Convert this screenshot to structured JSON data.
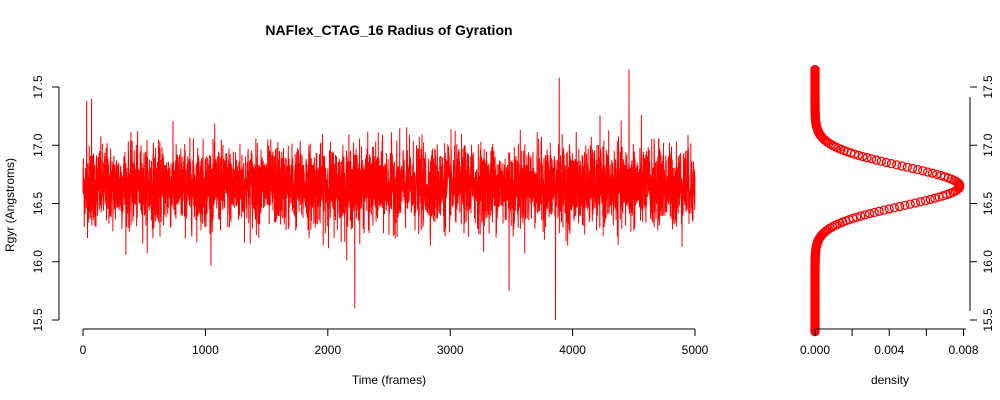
{
  "chart_data": [
    {
      "type": "line",
      "title": "NAFlex_CTAG_16 Radius of Gyration",
      "xlabel": "Time (frames)",
      "ylabel": "Rgyr (Angstroms)",
      "xlim": [
        0,
        5000
      ],
      "ylim": [
        15.5,
        17.6
      ],
      "xticks": [
        0,
        1000,
        2000,
        3000,
        4000,
        5000
      ],
      "yticks": [
        15.5,
        16.0,
        16.5,
        17.0,
        17.5
      ],
      "grid": false,
      "legend": "none",
      "series": [
        {
          "color": "#ff0000",
          "n_frames": 5000,
          "mean": 16.65,
          "sd": 0.17,
          "extremes": [
            {
              "x": 30,
              "y": 17.38
            },
            {
              "x": 70,
              "y": 17.4
            },
            {
              "x": 2220,
              "y": 15.6
            },
            {
              "x": 3480,
              "y": 15.75
            },
            {
              "x": 3860,
              "y": 15.5
            },
            {
              "x": 3890,
              "y": 17.58
            },
            {
              "x": 4460,
              "y": 17.65
            }
          ]
        }
      ]
    },
    {
      "type": "scatter",
      "xlabel": "density",
      "ylabel": "",
      "xlim": [
        0,
        0.0082
      ],
      "ylim": [
        15.4,
        17.65
      ],
      "xticks": [
        "0.000",
        "0.004",
        "0.008"
      ],
      "minor_xticks": [
        0.002,
        0.006
      ],
      "yticks": [
        15.5,
        16.0,
        16.5,
        17.0,
        17.5
      ],
      "y_axis_side": "right",
      "legend": "none",
      "series": [
        {
          "color": "#ff0000",
          "marker": "circle",
          "y_range": [
            15.4,
            17.65
          ],
          "peak_y": 16.65,
          "peak_density": 0.0078,
          "sd": 0.17
        }
      ]
    }
  ]
}
